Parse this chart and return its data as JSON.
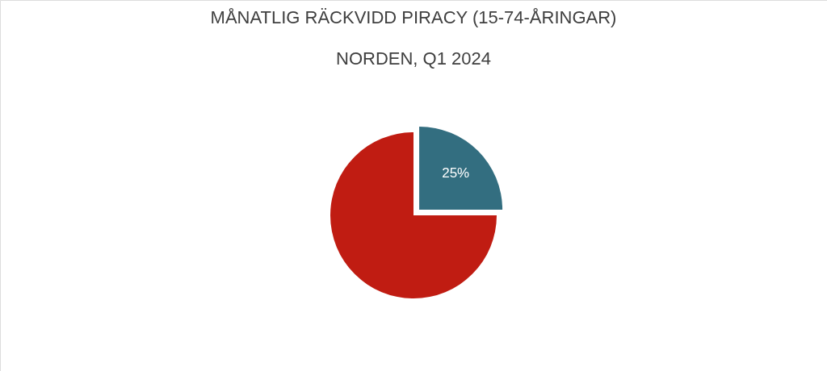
{
  "chart_data": {
    "type": "pie",
    "title": "MÅNATLIG RÄCKVIDD PIRACY (15-74-ÅRINGAR)",
    "subtitle": "NORDEN, Q1 2024",
    "categories": [
      null,
      null
    ],
    "values": [
      25,
      75
    ],
    "colors": [
      "#336e80",
      "#c01c12"
    ],
    "value_labels": [
      "25%",
      null
    ]
  }
}
